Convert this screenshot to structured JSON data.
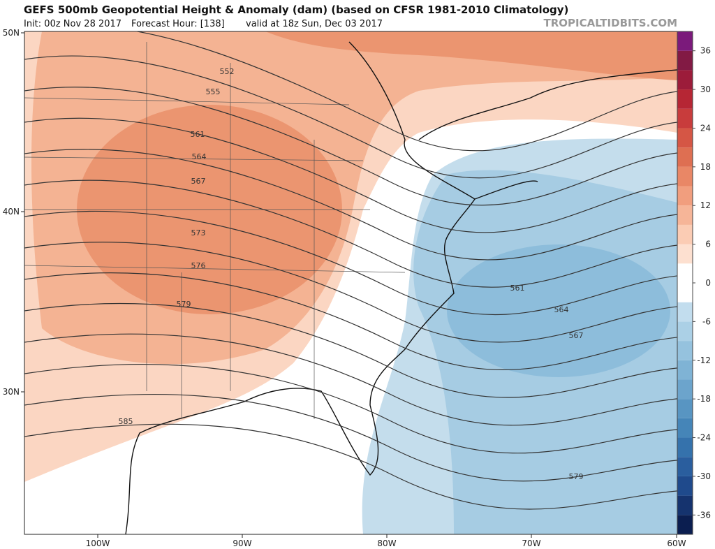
{
  "header": {
    "title": "GEFS 500mb Geopotential Height & Anomaly (dam) (based on CFSR 1981-2010 Climatology)",
    "init": "Init: 00z Nov 28 2017",
    "forecast_hour": "Forecast Hour: [138]",
    "valid": "valid at 18z Sun, Dec 03 2017",
    "watermark": "TROPICALTIDBITS.COM"
  },
  "map": {
    "lat_labels": [
      "50N",
      "40N",
      "30N"
    ],
    "lon_labels": [
      "100W",
      "90W",
      "80W",
      "70W",
      "60W"
    ],
    "contour_labels": [
      "552",
      "555",
      "561",
      "564",
      "567",
      "573",
      "576",
      "579",
      "585",
      "561",
      "564",
      "567",
      "579"
    ]
  },
  "colorbar": {
    "range": [
      -39,
      39
    ],
    "ticks": [
      36,
      30,
      24,
      18,
      12,
      6,
      0,
      -6,
      -12,
      -18,
      -24,
      -30,
      -36
    ],
    "colors": [
      "#0b1e50",
      "#15336e",
      "#1f4a8c",
      "#2a5e9e",
      "#3572ac",
      "#4585b8",
      "#5895c2",
      "#6ca4cc",
      "#7fb3d5",
      "#95c2de",
      "#abd0e6",
      "#c2ddee",
      "#ffffff",
      "#ffffff",
      "#fde0d0",
      "#fbccb4",
      "#f6b598",
      "#f19e7e",
      "#e98766",
      "#de6f52",
      "#d55645",
      "#c83c3c",
      "#b62634",
      "#9c1c3a",
      "#821a44",
      "#7b1a7b"
    ]
  }
}
